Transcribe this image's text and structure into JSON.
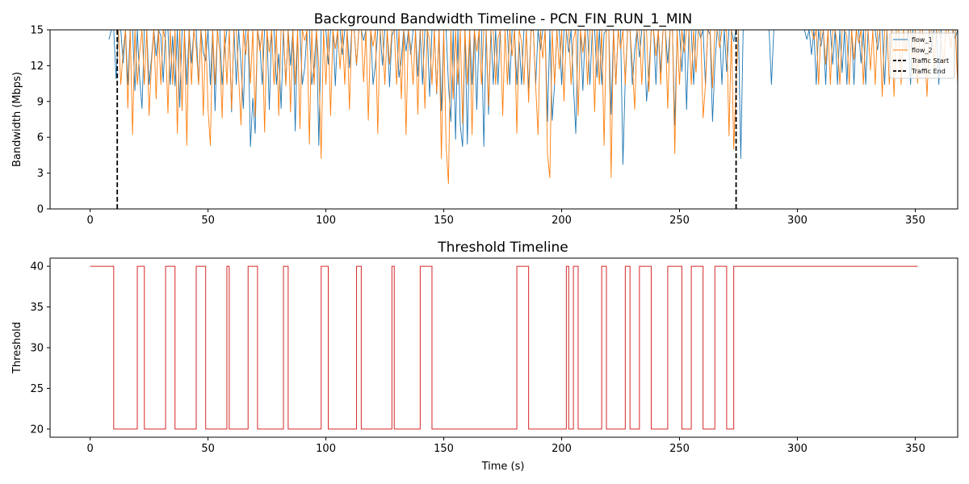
{
  "figure": {
    "chart_data": [
      {
        "type": "line",
        "title": "Background Bandwidth Timeline - PCN_FIN_RUN_1_MIN",
        "xlabel": "",
        "ylabel": "Bandwidth (Mbps)",
        "xlim": [
          -17,
          368
        ],
        "ylim": [
          0,
          15
        ],
        "x_ticks": [
          0,
          50,
          100,
          150,
          200,
          250,
          300,
          350
        ],
        "y_ticks": [
          0,
          3,
          6,
          9,
          12,
          15
        ],
        "legend": {
          "placement": "top-right",
          "entries": [
            "flow_1",
            "flow_2",
            "Traffic Start",
            "Traffic End"
          ]
        },
        "series": [
          {
            "name": "flow_1",
            "color": "#1f77b4",
            "x_start": 8,
            "x_step": 1,
            "values": [
              14.2,
              15,
              15,
              10.9,
              15,
              15,
              12.2,
              15,
              10.4,
              15,
              15,
              9.9,
              15,
              11,
              8.4,
              15,
              15,
              10.4,
              12.6,
              15,
              12.8,
              15,
              14.5,
              10.6,
              15,
              15,
              10.4,
              14.5,
              10.3,
              15,
              8.5,
              15,
              15,
              10.4,
              15,
              12.2,
              15,
              15,
              10.4,
              15,
              13.1,
              12.4,
              15,
              10.4,
              15,
              8.2,
              15,
              15,
              10.4,
              13.2,
              15,
              15,
              8.1,
              15,
              10.4,
              15,
              12.1,
              8.4,
              15,
              15,
              5.2,
              9.3,
              6.3,
              15,
              13.8,
              10.4,
              15,
              15,
              8.3,
              15,
              15,
              10.4,
              13,
              8.4,
              15,
              10.4,
              15,
              12,
              15,
              6.5,
              15,
              15,
              10.4,
              11.8,
              15,
              15,
              10.4,
              12,
              15,
              5.3,
              15,
              15,
              15,
              12.1,
              15,
              15,
              10.3,
              15,
              15,
              12.9,
              15,
              15,
              11.8,
              15,
              15,
              12,
              15,
              15,
              14.1,
              15,
              15,
              15,
              10.4,
              12.1,
              15,
              15,
              12,
              15,
              15,
              10.2,
              14.5,
              15,
              15,
              11,
              12.5,
              15,
              13.2,
              15,
              12.9,
              15,
              15,
              11.1,
              15,
              10.4,
              15,
              15,
              9.4,
              15,
              15,
              9.6,
              15,
              8.2,
              15,
              15,
              10.4,
              7.3,
              15,
              5.8,
              15,
              7,
              5.2,
              15,
              5.4,
              15,
              10.4,
              15,
              8.3,
              15,
              15,
              5.2,
              15,
              7.9,
              15,
              10.4,
              15,
              10.4,
              15,
              15,
              15,
              15,
              10.4,
              15,
              15,
              10.4,
              14,
              10.4,
              15,
              15,
              9.9,
              14.9,
              15,
              10.4,
              15,
              13.3,
              15,
              15,
              7.3,
              15,
              7.4,
              10.4,
              15,
              15,
              10.4,
              15,
              15,
              13.1,
              15,
              10.4,
              6.3,
              15,
              15,
              9.9,
              15,
              15,
              10.4,
              15,
              15,
              11,
              15,
              10.4,
              14.7,
              15,
              15,
              7.9,
              15,
              10.4,
              15,
              15,
              3.7,
              11,
              15,
              15,
              10.4,
              13.3,
              15,
              12.7,
              15,
              15,
              9,
              11.3,
              15,
              15,
              10.4,
              15,
              11.4,
              15,
              15,
              12.2,
              15,
              15,
              7,
              15,
              15,
              11.5,
              15,
              8.3,
              15,
              15,
              10.4,
              15,
              15,
              14.3,
              15,
              10.4,
              15,
              14.6,
              7.3,
              12.1,
              15,
              15,
              10.4,
              15,
              11.5,
              15,
              15,
              14,
              15,
              15,
              4.2,
              15,
              15,
              15,
              15,
              15,
              15,
              15,
              15,
              15,
              15,
              15,
              15,
              10.4,
              15,
              15,
              15,
              15,
              15,
              15,
              15,
              15,
              15,
              15,
              15,
              15,
              15,
              15,
              14.2,
              15,
              12.9,
              15,
              10.4,
              15,
              13.6,
              15,
              10.4,
              15,
              15,
              12.1,
              15,
              10.4,
              15,
              11.4,
              15,
              10.4,
              15,
              15,
              10.4,
              15,
              15,
              12.2,
              15,
              10.4,
              15,
              15,
              15,
              15,
              13.3,
              15,
              15,
              10.4,
              15,
              15,
              15,
              15,
              15,
              15,
              15,
              15,
              15,
              15,
              10.4,
              15,
              15,
              15,
              15,
              15,
              15,
              15,
              15,
              13.5,
              15,
              15,
              10.4,
              15,
              15,
              15,
              15,
              15,
              15,
              14.3,
              15,
              15,
              15,
              15,
              15,
              15
            ]
          },
          {
            "name": "flow_2",
            "color": "#ff7f0e",
            "x_start": 12,
            "x_step": 1,
            "values": [
              15,
              10.4,
              13.2,
              15,
              8.4,
              15,
              6.2,
              15,
              10.4,
              13.1,
              15,
              10.4,
              15,
              7.8,
              12.1,
              15,
              9.2,
              15,
              10.4,
              15,
              14.1,
              8,
              15,
              10.4,
              15,
              6.3,
              15,
              8.2,
              15,
              5.3,
              15,
              10.4,
              15,
              13.5,
              10.4,
              15,
              7.8,
              15,
              8.4,
              5.3,
              15,
              10.4,
              15,
              13.1,
              7.6,
              15,
              10.4,
              15,
              8.3,
              15,
              15,
              11,
              7,
              15,
              12.9,
              15,
              10.5,
              15,
              7.7,
              15,
              13.2,
              15,
              6.4,
              15,
              13.1,
              15,
              10.4,
              15,
              7.8,
              15,
              15,
              10.3,
              15,
              8.1,
              15,
              10.4,
              15,
              6.7,
              15,
              14.1,
              15,
              5.4,
              15,
              10.4,
              15,
              11.9,
              4.2,
              15,
              10.4,
              15,
              7.8,
              15,
              13.4,
              15,
              11.7,
              15,
              10.4,
              15,
              8.3,
              15,
              15,
              12.1,
              15,
              15,
              10.6,
              15,
              7.4,
              15,
              13.6,
              15,
              6.3,
              15,
              15,
              10.4,
              15,
              12.1,
              15,
              15,
              10.4,
              15,
              9.2,
              15,
              6.2,
              15,
              13.5,
              10.4,
              15,
              7.9,
              15,
              15,
              8.4,
              15,
              14.2,
              10.4,
              15,
              9.7,
              15,
              4.2,
              15,
              5.2,
              2.1,
              15,
              9.2,
              15,
              10.4,
              15,
              7.1,
              15,
              10.4,
              15,
              6.2,
              15,
              13.2,
              15,
              10.4,
              15,
              15,
              8.6,
              15,
              15,
              10.4,
              14.3,
              15,
              7.8,
              15,
              10.4,
              15,
              12.8,
              15,
              6.3,
              15,
              14,
              10.4,
              15,
              8.9,
              15,
              15,
              10.3,
              6.2,
              15,
              12.6,
              15,
              4.6,
              2.6,
              15,
              10.4,
              15,
              11.7,
              15,
              9,
              15,
              15,
              10.4,
              14.2,
              15,
              7.8,
              15,
              13.1,
              15,
              10.4,
              15,
              15,
              8.1,
              15,
              10.4,
              15,
              5.3,
              15,
              15,
              2.6,
              15,
              10.4,
              15,
              13.4,
              15,
              10.4,
              15,
              15,
              12,
              8.3,
              15,
              15,
              10.4,
              15,
              15,
              9.8,
              15,
              15,
              12.8,
              15,
              10.4,
              15,
              15,
              8.4,
              15,
              15,
              4.6,
              15,
              10.4,
              15,
              13.1,
              15,
              15,
              10.4,
              15,
              11.4,
              15,
              15,
              7.6,
              10.4,
              15,
              15,
              10.1,
              15,
              15,
              13.5,
              15,
              15,
              14.9,
              6.1,
              15,
              5,
              10.4,
              15,
              15,
              15,
              15,
              15,
              15,
              15,
              15,
              15,
              15,
              15,
              15,
              15,
              15,
              15,
              15,
              15,
              15,
              15,
              15,
              15,
              15,
              15,
              15,
              15,
              15,
              15,
              15,
              15,
              15,
              15,
              15,
              14.2,
              15,
              10.4,
              15,
              15,
              12.1,
              15,
              10.4,
              15,
              15,
              13.8,
              10.4,
              15,
              15,
              14.5,
              10.4,
              15,
              12.5,
              15,
              13.9,
              15,
              10.4,
              15,
              15,
              11.6,
              15,
              10.4,
              15,
              15,
              9.4,
              15,
              15,
              10.4,
              15,
              9.4,
              15,
              15,
              10.4,
              15,
              13.1,
              15,
              15,
              11.2,
              15,
              10.5,
              15,
              15,
              13.2,
              9.4,
              15,
              15,
              11.8,
              15,
              15,
              14,
              12.1,
              15,
              15,
              13.5,
              15,
              15,
              10.4,
              15,
              15,
              15,
              15,
              15,
              15
            ]
          }
        ],
        "vlines": [
          {
            "name": "Traffic Start",
            "x": 11.5
          },
          {
            "name": "Traffic End",
            "x": 274
          }
        ]
      },
      {
        "type": "line",
        "title": "Threshold Timeline",
        "xlabel": "Time (s)",
        "ylabel": "Threshold",
        "xlim": [
          -17,
          368
        ],
        "ylim": [
          19,
          41
        ],
        "x_ticks": [
          0,
          50,
          100,
          150,
          200,
          250,
          300,
          350
        ],
        "y_ticks": [
          20,
          25,
          30,
          35,
          40
        ],
        "series": [
          {
            "name": "",
            "color": "#d62728",
            "step_points": [
              [
                0,
                40
              ],
              [
                10,
                20
              ],
              [
                20,
                40
              ],
              [
                23,
                20
              ],
              [
                32,
                40
              ],
              [
                36,
                20
              ],
              [
                45,
                40
              ],
              [
                49,
                20
              ],
              [
                58,
                40
              ],
              [
                59,
                20
              ],
              [
                67,
                40
              ],
              [
                71,
                20
              ],
              [
                82,
                40
              ],
              [
                84,
                20
              ],
              [
                98,
                40
              ],
              [
                101,
                20
              ],
              [
                113,
                40
              ],
              [
                115,
                20
              ],
              [
                128,
                40
              ],
              [
                129,
                20
              ],
              [
                140,
                40
              ],
              [
                145,
                20
              ],
              [
                181,
                40
              ],
              [
                186,
                20
              ],
              [
                202,
                40
              ],
              [
                203,
                20
              ],
              [
                205,
                40
              ],
              [
                207,
                20
              ],
              [
                217,
                40
              ],
              [
                219,
                20
              ],
              [
                227,
                40
              ],
              [
                229,
                20
              ],
              [
                233,
                40
              ],
              [
                238,
                20
              ],
              [
                245,
                40
              ],
              [
                251,
                20
              ],
              [
                255,
                40
              ],
              [
                260,
                20
              ],
              [
                265,
                40
              ],
              [
                270,
                20
              ],
              [
                273,
                40
              ],
              [
                351,
                40
              ]
            ]
          }
        ]
      }
    ]
  }
}
